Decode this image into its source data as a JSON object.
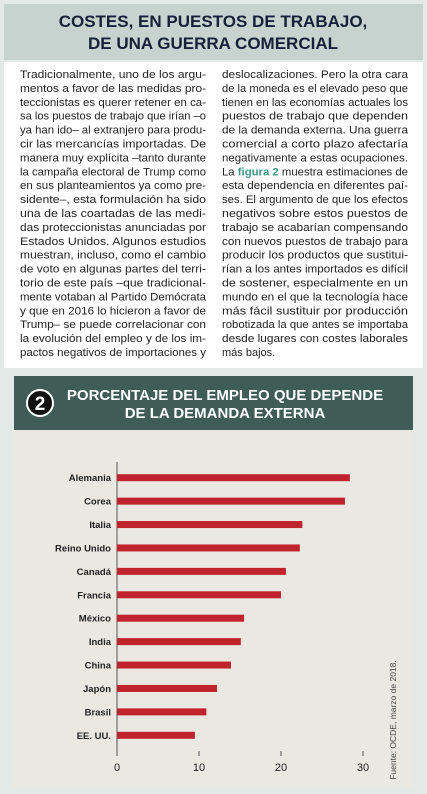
{
  "header": {
    "title_lines": [
      "COSTES, EN PUESTOS DE TRABAJO,",
      "DE UNA GUERRA COMERCIAL"
    ]
  },
  "article": {
    "left_lines": [
      "Tradicionalmente, uno de los argu-",
      "mentos a favor de las medidas pro-",
      "teccionistas es querer retener en ca-",
      "sa los puestos de trabajo que irían –o",
      "ya han ido– al extranjero para produ-",
      "cir las mercancías importadas. De",
      "manera muy explícita –tanto durante",
      "la campaña electoral de Trump como",
      "en sus planteamientos ya como pre-",
      "sidente–, esta formulación ha sido",
      "una de las coartadas de las medi-",
      "das proteccionistas anunciadas por",
      "Estados Unidos. Algunos estudios",
      "muestran, incluso, como el cambio",
      "de voto en algunas partes del terri-",
      "torio de este país –que tradicional-",
      "mente votaban al Partido Demócrata",
      "y que en 2016 lo hicieron a favor de",
      "Trump– se puede correlacionar con",
      "la evolución del empleo y de los im-",
      "pactos negativos de importaciones y"
    ],
    "right_lines_a": [
      "deslocalizaciones. Pero la otra cara",
      "de la moneda es el elevado peso que",
      "tienen en las economías actuales los",
      "puestos de trabajo que dependen",
      "de la demanda externa. Una guerra",
      "comercial a corto plazo afectaría",
      "negativamente a estas ocupaciones."
    ],
    "figure_ref_line": {
      "before": "La ",
      "link": "figura 2",
      "after": " muestra estimaciones de"
    },
    "right_lines_b": [
      "esta dependencia en diferentes paí-",
      "ses. El argumento de que los efectos",
      "negativos sobre estos puestos de",
      "trabajo se acabarían compensando",
      "con nuevos puestos de trabajo para",
      "producir los productos que sustitui-",
      "rían a los antes importados es difícil",
      "de sostener, especialmente en un",
      "mundo en el que la tecnología hace",
      "más fácil sustituir por producción",
      "robotizada la que antes se importaba",
      "desde lugares con costes laborales",
      "más bajos."
    ]
  },
  "chart_data": {
    "type": "bar",
    "orientation": "horizontal",
    "number": "2",
    "title_lines": [
      "PORCENTAJE DEL EMPLEO QUE DEPENDE",
      "DE LA DEMANDA EXTERNA"
    ],
    "categories": [
      "Alemania",
      "Corea",
      "Italia",
      "Reino Unido",
      "Canadá",
      "Francia",
      "México",
      "India",
      "China",
      "Japón",
      "Brasil",
      "EE. UU."
    ],
    "values": [
      28.4,
      27.8,
      22.6,
      22.3,
      20.6,
      20.0,
      15.5,
      15.1,
      13.9,
      12.2,
      10.9,
      9.5
    ],
    "color": "#c0232c",
    "xlim": [
      0,
      30
    ],
    "xticks": [
      0,
      10,
      20,
      30
    ],
    "source": "Fuente: OCDE, marzo de 2018."
  }
}
